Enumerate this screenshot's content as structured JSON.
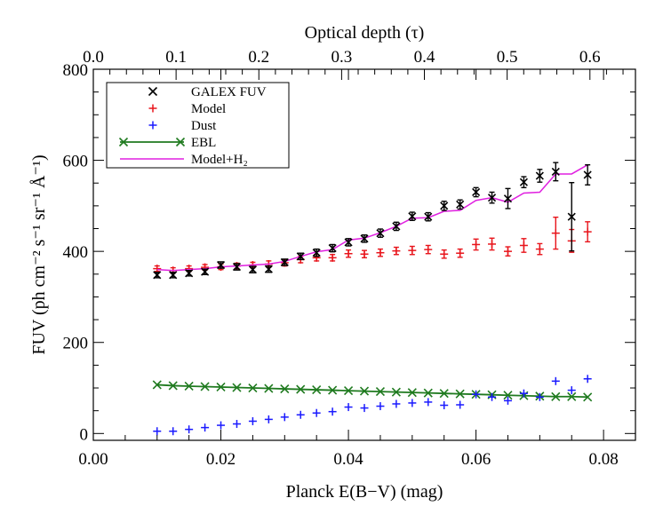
{
  "chart_data": {
    "type": "scatter",
    "xlabel": "Planck E(B−V) (mag)",
    "ylabel": "FUV (ph cm⁻² s⁻¹ sr⁻¹ Å⁻¹)",
    "x2label": "Optical depth (τ)",
    "xlim": [
      0.0,
      0.085
    ],
    "ylim": [
      -15,
      800
    ],
    "x2lim": [
      0.0,
      0.655
    ],
    "xticks": [
      "0.00",
      "0.02",
      "0.04",
      "0.06",
      "0.08"
    ],
    "yticks": [
      "0",
      "200",
      "400",
      "600",
      "800"
    ],
    "x2ticks": [
      "0.0",
      "0.1",
      "0.2",
      "0.3",
      "0.4",
      "0.5",
      "0.6"
    ],
    "grid": false,
    "legend_position": "top-left",
    "x": [
      0.01,
      0.0125,
      0.015,
      0.0175,
      0.02,
      0.0225,
      0.025,
      0.0275,
      0.03,
      0.0325,
      0.035,
      0.0375,
      0.04,
      0.0425,
      0.045,
      0.0475,
      0.05,
      0.0525,
      0.055,
      0.0575,
      0.06,
      0.0625,
      0.065,
      0.0675,
      0.07,
      0.0725,
      0.075,
      0.0775
    ],
    "series": [
      {
        "name": "GALEX FUV",
        "marker": "x",
        "color": "#000000",
        "values": [
          348,
          348,
          352,
          355,
          370,
          366,
          360,
          361,
          376,
          389,
          397,
          407,
          420,
          428,
          440,
          455,
          477,
          476,
          500,
          503,
          530,
          518,
          516,
          552,
          566,
          575,
          476,
          568
        ],
        "errors": [
          6,
          6,
          6,
          6,
          7,
          7,
          7,
          7,
          7,
          7,
          8,
          8,
          8,
          8,
          9,
          9,
          9,
          9,
          10,
          10,
          10,
          12,
          22,
          12,
          14,
          20,
          75,
          22
        ]
      },
      {
        "name": "Model",
        "marker": "+",
        "color": "#e8141b",
        "values": [
          362,
          358,
          362,
          365,
          366,
          368,
          370,
          372,
          375,
          382,
          386,
          386,
          395,
          394,
          397,
          401,
          402,
          404,
          394,
          396,
          415,
          416,
          400,
          413,
          405,
          440,
          423,
          443
        ],
        "errors": [
          6,
          6,
          6,
          6,
          6,
          6,
          6,
          7,
          7,
          7,
          7,
          7,
          8,
          8,
          8,
          8,
          9,
          9,
          9,
          9,
          12,
          13,
          10,
          15,
          12,
          35,
          25,
          22
        ]
      },
      {
        "name": "Dust",
        "marker": "+",
        "color": "#1a1aff",
        "values": [
          5,
          5,
          9,
          13,
          18,
          21,
          27,
          31,
          36,
          41,
          45,
          48,
          58,
          56,
          60,
          65,
          67,
          69,
          62,
          63,
          86,
          80,
          72,
          88,
          80,
          115,
          95,
          120
        ]
      },
      {
        "name": "EBL",
        "marker": "x-line",
        "color": "#1f7a1f",
        "values": [
          107,
          105,
          104,
          103,
          102,
          101,
          100,
          99,
          98,
          97,
          96,
          95,
          94,
          93,
          92,
          91,
          90,
          89,
          88,
          87,
          86,
          85,
          84,
          83,
          82,
          81,
          81,
          80
        ]
      },
      {
        "name": "Model+H₂",
        "marker": "line",
        "color": "#e020e0",
        "values": [
          360,
          358,
          360,
          362,
          366,
          368,
          370,
          372,
          378,
          389,
          399,
          404,
          425,
          429,
          441,
          455,
          473,
          474,
          488,
          490,
          512,
          518,
          508,
          528,
          530,
          570,
          570,
          590
        ]
      }
    ]
  }
}
